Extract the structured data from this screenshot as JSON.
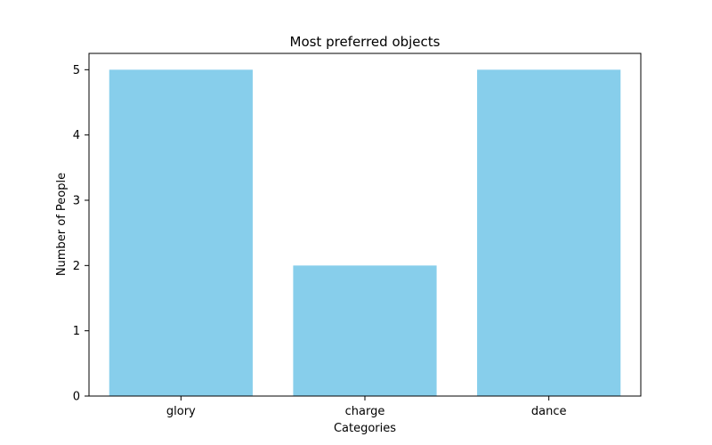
{
  "chart_data": {
    "type": "bar",
    "title": "Most preferred objects",
    "xlabel": "Categories",
    "ylabel": "Number of People",
    "categories": [
      "glory",
      "charge",
      "dance"
    ],
    "values": [
      5,
      2,
      5
    ],
    "ylim": [
      0,
      5.25
    ],
    "yticks": [
      "0",
      "1",
      "2",
      "3",
      "4",
      "5"
    ],
    "bar_color": "#87CEEB",
    "grid": false,
    "legend": "none"
  }
}
